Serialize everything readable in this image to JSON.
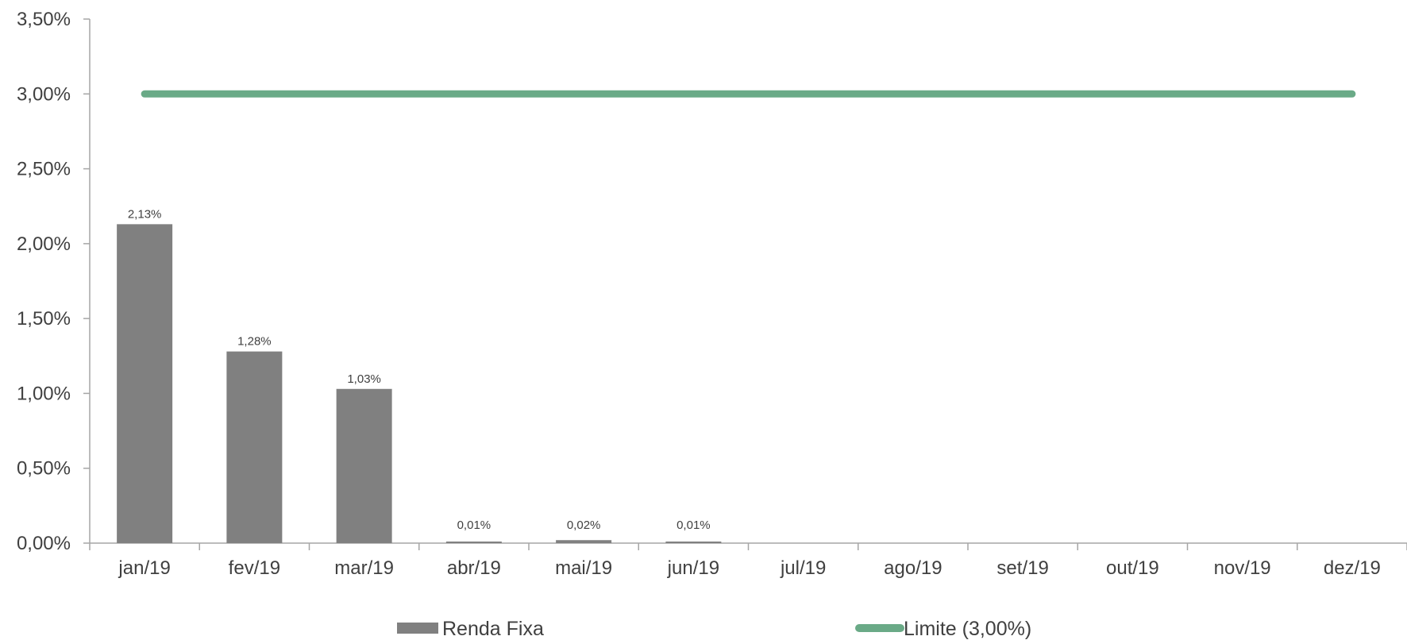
{
  "chart_data": {
    "type": "bar",
    "categories": [
      "jan/19",
      "fev/19",
      "mar/19",
      "abr/19",
      "mai/19",
      "jun/19",
      "jul/19",
      "ago/19",
      "set/19",
      "out/19",
      "nov/19",
      "dez/19"
    ],
    "series": [
      {
        "name": "Renda Fixa",
        "type": "bar",
        "color": "#808080",
        "values": [
          2.13,
          1.28,
          1.03,
          0.01,
          0.02,
          0.01,
          null,
          null,
          null,
          null,
          null,
          null
        ],
        "labels": [
          "2,13%",
          "1,28%",
          "1,03%",
          "0,01%",
          "0,02%",
          "0,01%",
          "",
          "",
          "",
          "",
          "",
          ""
        ]
      },
      {
        "name": "Limite (3,00%)",
        "type": "line",
        "color": "#6aaa87",
        "values": [
          3,
          3,
          3,
          3,
          3,
          3,
          3,
          3,
          3,
          3,
          3,
          3
        ]
      }
    ],
    "y_ticks": [
      "0,00%",
      "0,50%",
      "1,00%",
      "1,50%",
      "2,00%",
      "2,50%",
      "3,00%",
      "3,50%"
    ],
    "ylim": [
      0,
      3.5
    ],
    "grid": false,
    "legend_position": "bottom"
  }
}
